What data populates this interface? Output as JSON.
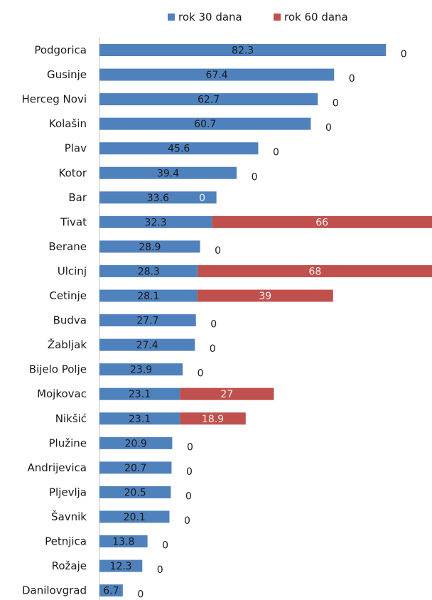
{
  "chart_data": {
    "type": "bar",
    "orientation": "horizontal",
    "stacked": true,
    "categories": [
      "Podgorica",
      "Gusinje",
      "Herceg Novi",
      "Kolašin",
      "Plav",
      "Kotor",
      "Bar",
      "Tivat",
      "Berane",
      "Ulcinj",
      "Cetinje",
      "Budva",
      "Žabljak",
      "Bijelo Polje",
      "Mojkovac",
      "Nikšić",
      "Plužine",
      "Andrijevica",
      "Pljevlja",
      "Šavnik",
      "Petnjica",
      "Rožaje",
      "Danilovgrad"
    ],
    "series": [
      {
        "name": "rok 30 dana",
        "color": "#4f81bd",
        "values": [
          82.3,
          67.4,
          62.7,
          60.7,
          45.6,
          39.4,
          33.6,
          32.3,
          28.9,
          28.3,
          28.1,
          27.7,
          27.4,
          23.9,
          23.1,
          23.1,
          20.9,
          20.7,
          20.5,
          20.1,
          13.8,
          12.3,
          6.7
        ],
        "labels": [
          "82.3",
          "67.4",
          "62.7",
          "60.7",
          "45.6",
          "39.4",
          "33.6",
          "32.3",
          "28.9",
          "28.3",
          "28.1",
          "27.7",
          "27.4",
          "23.9",
          "23.1",
          "23.1",
          "20.9",
          "20.7",
          "20.5",
          "20.1",
          "13.8",
          "12.3",
          "6.7"
        ]
      },
      {
        "name": "rok 60 dana",
        "color": "#c0504d",
        "values": [
          0,
          0,
          0,
          0,
          0,
          0,
          0,
          66,
          0,
          68,
          39,
          0,
          0,
          0,
          27,
          18.9,
          0,
          0,
          0,
          0,
          0,
          0,
          0
        ],
        "labels": [
          "0",
          "0",
          "0",
          "0",
          "0",
          "0",
          "0",
          "66",
          "0",
          "68",
          "39",
          "0",
          "0",
          "0",
          "27",
          "18.9",
          "0",
          "0",
          "0",
          "0",
          "0",
          "0",
          "0"
        ]
      }
    ],
    "xlim": [
      0,
      100
    ],
    "grid": false,
    "legend_position": "top"
  }
}
